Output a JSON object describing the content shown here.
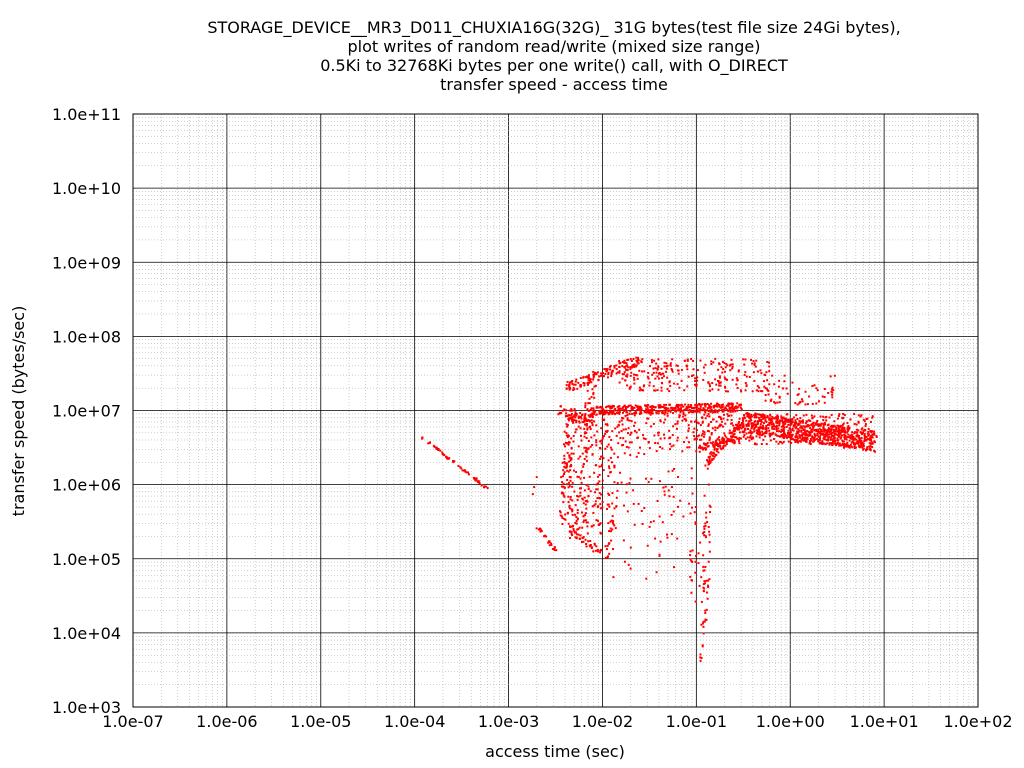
{
  "chart_data": {
    "type": "scatter",
    "title_lines": [
      "STORAGE_DEVICE__MR3_D011_CHUXIA16G(32G)_ 31G bytes(test file size 24Gi bytes),",
      "plot writes of random read/write (mixed size range)",
      "0.5Ki to 32768Ki bytes per one write() call, with O_DIRECT",
      "transfer speed - access time"
    ],
    "xlabel": "access time (sec)",
    "ylabel": "transfer speed (bytes/sec)",
    "x_scale": "log",
    "y_scale": "log",
    "xlim": [
      1e-07,
      100
    ],
    "ylim": [
      1000,
      100000000000
    ],
    "x_ticks": [
      "1.0e-07",
      "1.0e-06",
      "1.0e-05",
      "1.0e-04",
      "1.0e-03",
      "1.0e-02",
      "1.0e-01",
      "1.0e+00",
      "1.0e+01",
      "1.0e+02"
    ],
    "y_ticks": [
      "1.0e+03",
      "1.0e+04",
      "1.0e+05",
      "1.0e+06",
      "1.0e+07",
      "1.0e+08",
      "1.0e+09",
      "1.0e+10",
      "1.0e+11"
    ],
    "grid": true,
    "series_color": "#ff0000",
    "clusters": [
      {
        "x": [
          0.00012,
          0.0006
        ],
        "y": [
          4300000,
          880000
        ],
        "n": 60,
        "shape": "line",
        "spread": 0.02
      },
      {
        "x": [
          0.0018,
          0.0032
        ],
        "y": [
          320000,
          130000
        ],
        "n": 25,
        "shape": "line",
        "spread": 0.03
      },
      {
        "x": [
          0.0045,
          0.0095
        ],
        "y": [
          260000,
          120000
        ],
        "n": 40,
        "shape": "line",
        "spread": 0.06
      },
      {
        "x": [
          0.0035,
          0.008
        ],
        "y": [
          10000000,
          7000000
        ],
        "n": 60,
        "shape": "line",
        "spread": 0.08
      },
      {
        "x": [
          0.008,
          0.3
        ],
        "y": [
          10000000,
          11000000
        ],
        "n": 400,
        "shape": "line",
        "spread": 0.06
      },
      {
        "x": [
          0.3,
          8
        ],
        "y": [
          7000000,
          3800000
        ],
        "n": 700,
        "shape": "line",
        "spread": 0.14
      },
      {
        "x": [
          0.1,
          8
        ],
        "y": [
          3500000,
          9000000
        ],
        "n": 350,
        "shape": "box",
        "spread": 0
      },
      {
        "x": [
          0.004,
          0.025
        ],
        "y": [
          20000000,
          48000000
        ],
        "n": 130,
        "shape": "line",
        "spread": 0.07
      },
      {
        "x": [
          0.015,
          0.6
        ],
        "y": [
          18000000,
          50000000
        ],
        "n": 250,
        "shape": "box",
        "spread": 0
      },
      {
        "x": [
          0.5,
          3
        ],
        "y": [
          12000000,
          30000000
        ],
        "n": 60,
        "shape": "box",
        "spread": 0
      },
      {
        "x": [
          0.0038,
          0.0045
        ],
        "y": [
          300000,
          10000000
        ],
        "n": 90,
        "shape": "vline",
        "spread": 0.05
      },
      {
        "x": [
          0.0048,
          0.0055
        ],
        "y": [
          200000,
          10000000
        ],
        "n": 70,
        "shape": "vline",
        "spread": 0.05
      },
      {
        "x": [
          0.006,
          0.0075
        ],
        "y": [
          150000,
          10000000
        ],
        "n": 90,
        "shape": "vline",
        "spread": 0.06
      },
      {
        "x": [
          0.0085,
          0.01
        ],
        "y": [
          200000,
          9000000
        ],
        "n": 70,
        "shape": "vline",
        "spread": 0.06
      },
      {
        "x": [
          0.012,
          0.014
        ],
        "y": [
          100000,
          8000000
        ],
        "n": 50,
        "shape": "vline",
        "spread": 0.06
      },
      {
        "x": [
          0.0072,
          0.0078
        ],
        "y": [
          9000000,
          30000000
        ],
        "n": 25,
        "shape": "vline",
        "spread": 0.05
      },
      {
        "x": [
          0.12,
          0.135
        ],
        "y": [
          4000,
          2000000
        ],
        "n": 60,
        "shape": "vline",
        "spread": 0.04
      },
      {
        "x": [
          0.09,
          0.11
        ],
        "y": [
          15000,
          300000
        ],
        "n": 20,
        "shape": "vline",
        "spread": 0.08
      },
      {
        "x": [
          0.13,
          0.3
        ],
        "y": [
          2000000,
          7000000
        ],
        "n": 80,
        "shape": "line",
        "spread": 0.07
      },
      {
        "x": [
          0.1,
          0.3
        ],
        "y": [
          3000000,
          4500000
        ],
        "n": 60,
        "shape": "line",
        "spread": 0.05
      },
      {
        "x": [
          0.012,
          0.1
        ],
        "y": [
          50000,
          3000000
        ],
        "n": 90,
        "shape": "box",
        "spread": 0
      },
      {
        "x": [
          0.01,
          0.1
        ],
        "y": [
          3000000,
          9000000
        ],
        "n": 120,
        "shape": "box",
        "spread": 0
      },
      {
        "x": [
          0.0017,
          0.002
        ],
        "y": [
          600000,
          1700000
        ],
        "n": 3,
        "shape": "box",
        "spread": 0
      }
    ]
  }
}
